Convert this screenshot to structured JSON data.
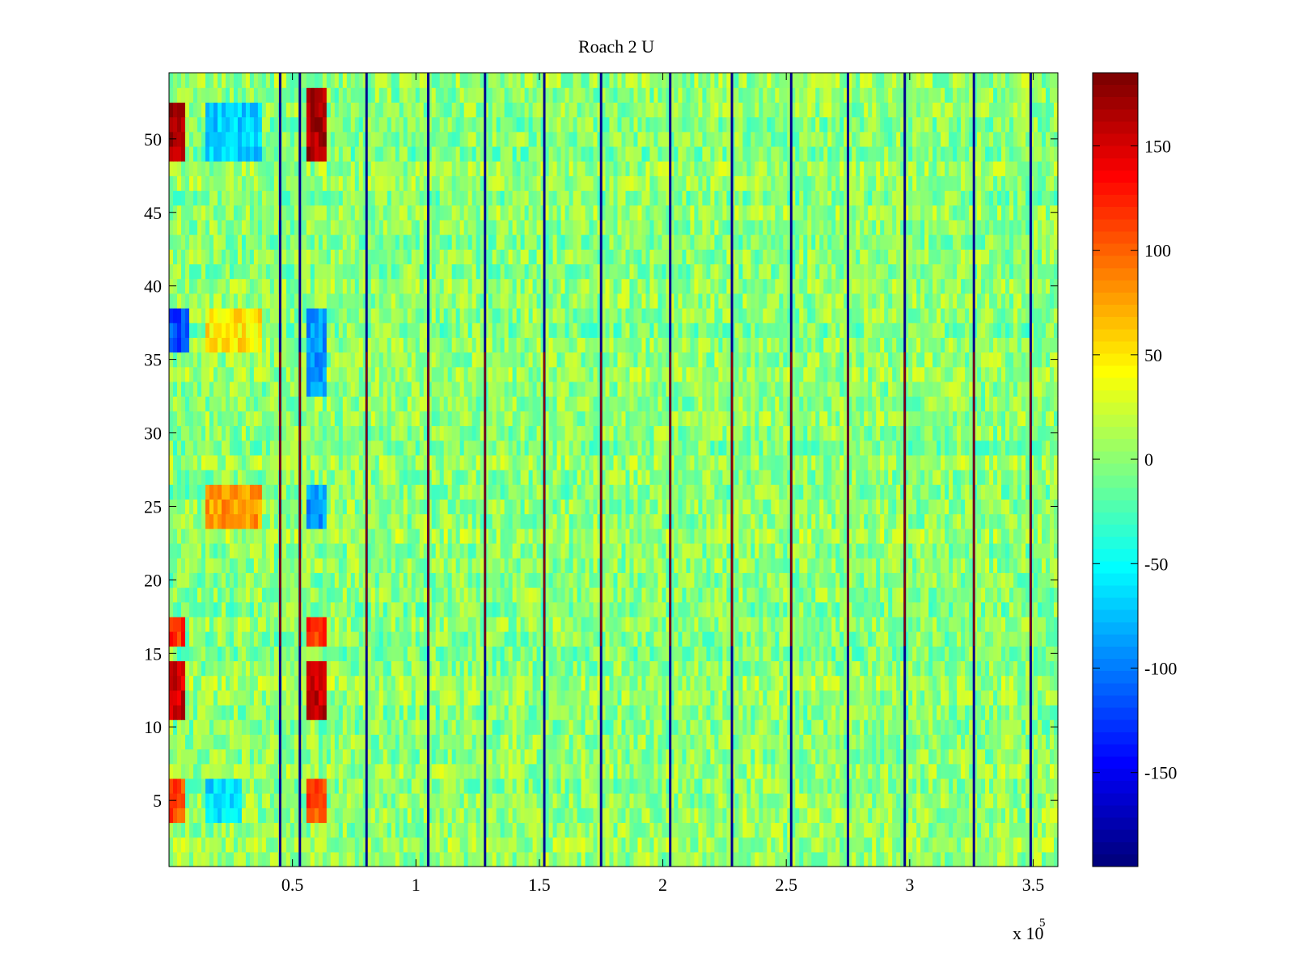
{
  "chart_data": {
    "type": "heatmap",
    "title": "Roach 2 U",
    "xlabel": "",
    "ylabel": "",
    "x_exponent_label": "x 10",
    "x_exponent": "5",
    "x_range": [
      0,
      360000
    ],
    "y_range": [
      0.5,
      54.5
    ],
    "x_ticks": [
      50000,
      100000,
      150000,
      200000,
      250000,
      300000,
      350000
    ],
    "x_tick_labels": [
      "0.5",
      "1",
      "1.5",
      "2",
      "2.5",
      "3",
      "3.5"
    ],
    "y_ticks": [
      5,
      10,
      15,
      20,
      25,
      30,
      35,
      40,
      45,
      50
    ],
    "y_tick_labels": [
      "5",
      "10",
      "15",
      "20",
      "25",
      "30",
      "35",
      "40",
      "45",
      "50"
    ],
    "colormap": "jet",
    "clim": [
      -195,
      185
    ],
    "colorbar_ticks": [
      150,
      100,
      50,
      0,
      -50,
      -100,
      -150
    ],
    "colorbar_tick_labels": [
      "150",
      "100",
      "50",
      "0",
      "-50",
      "-100",
      "-150"
    ],
    "background_level": 0,
    "rows": 54,
    "spike_columns_x": [
      45000,
      53000,
      80000,
      105000,
      128000,
      152000,
      175000,
      203000,
      228000,
      252000,
      275000,
      298000,
      326000,
      349000
    ],
    "spike_high_rows": [
      16,
      35
    ],
    "spike_low_value": -190,
    "spike_high_value": 180,
    "hot_regions": [
      {
        "x": [
          0,
          7000
        ],
        "rows": [
          49,
          52
        ],
        "value": 170
      },
      {
        "x": [
          55000,
          64000
        ],
        "rows": [
          49,
          53
        ],
        "value": 170
      },
      {
        "x": [
          0,
          7000
        ],
        "rows": [
          11,
          14
        ],
        "value": 155
      },
      {
        "x": [
          55000,
          64000
        ],
        "rows": [
          11,
          14
        ],
        "value": 160
      },
      {
        "x": [
          0,
          7000
        ],
        "rows": [
          4,
          6
        ],
        "value": 110
      },
      {
        "x": [
          55000,
          64000
        ],
        "rows": [
          4,
          6
        ],
        "value": 110
      },
      {
        "x": [
          0,
          7000
        ],
        "rows": [
          16,
          17
        ],
        "value": 120
      },
      {
        "x": [
          55000,
          64000
        ],
        "rows": [
          16,
          17
        ],
        "value": 120
      },
      {
        "x": [
          15000,
          38000
        ],
        "rows": [
          24,
          26
        ],
        "value": 80
      },
      {
        "x": [
          15000,
          38000
        ],
        "rows": [
          36,
          38
        ],
        "value": 50
      },
      {
        "x": [
          0,
          8000
        ],
        "rows": [
          36,
          38
        ],
        "value": -120
      },
      {
        "x": [
          55000,
          64000
        ],
        "rows": [
          33,
          38
        ],
        "value": -90
      },
      {
        "x": [
          55000,
          64000
        ],
        "rows": [
          24,
          26
        ],
        "value": -90
      },
      {
        "x": [
          15000,
          38000
        ],
        "rows": [
          49,
          52
        ],
        "value": -70
      },
      {
        "x": [
          15000,
          30000
        ],
        "rows": [
          4,
          6
        ],
        "value": -65
      }
    ],
    "grid": false
  }
}
